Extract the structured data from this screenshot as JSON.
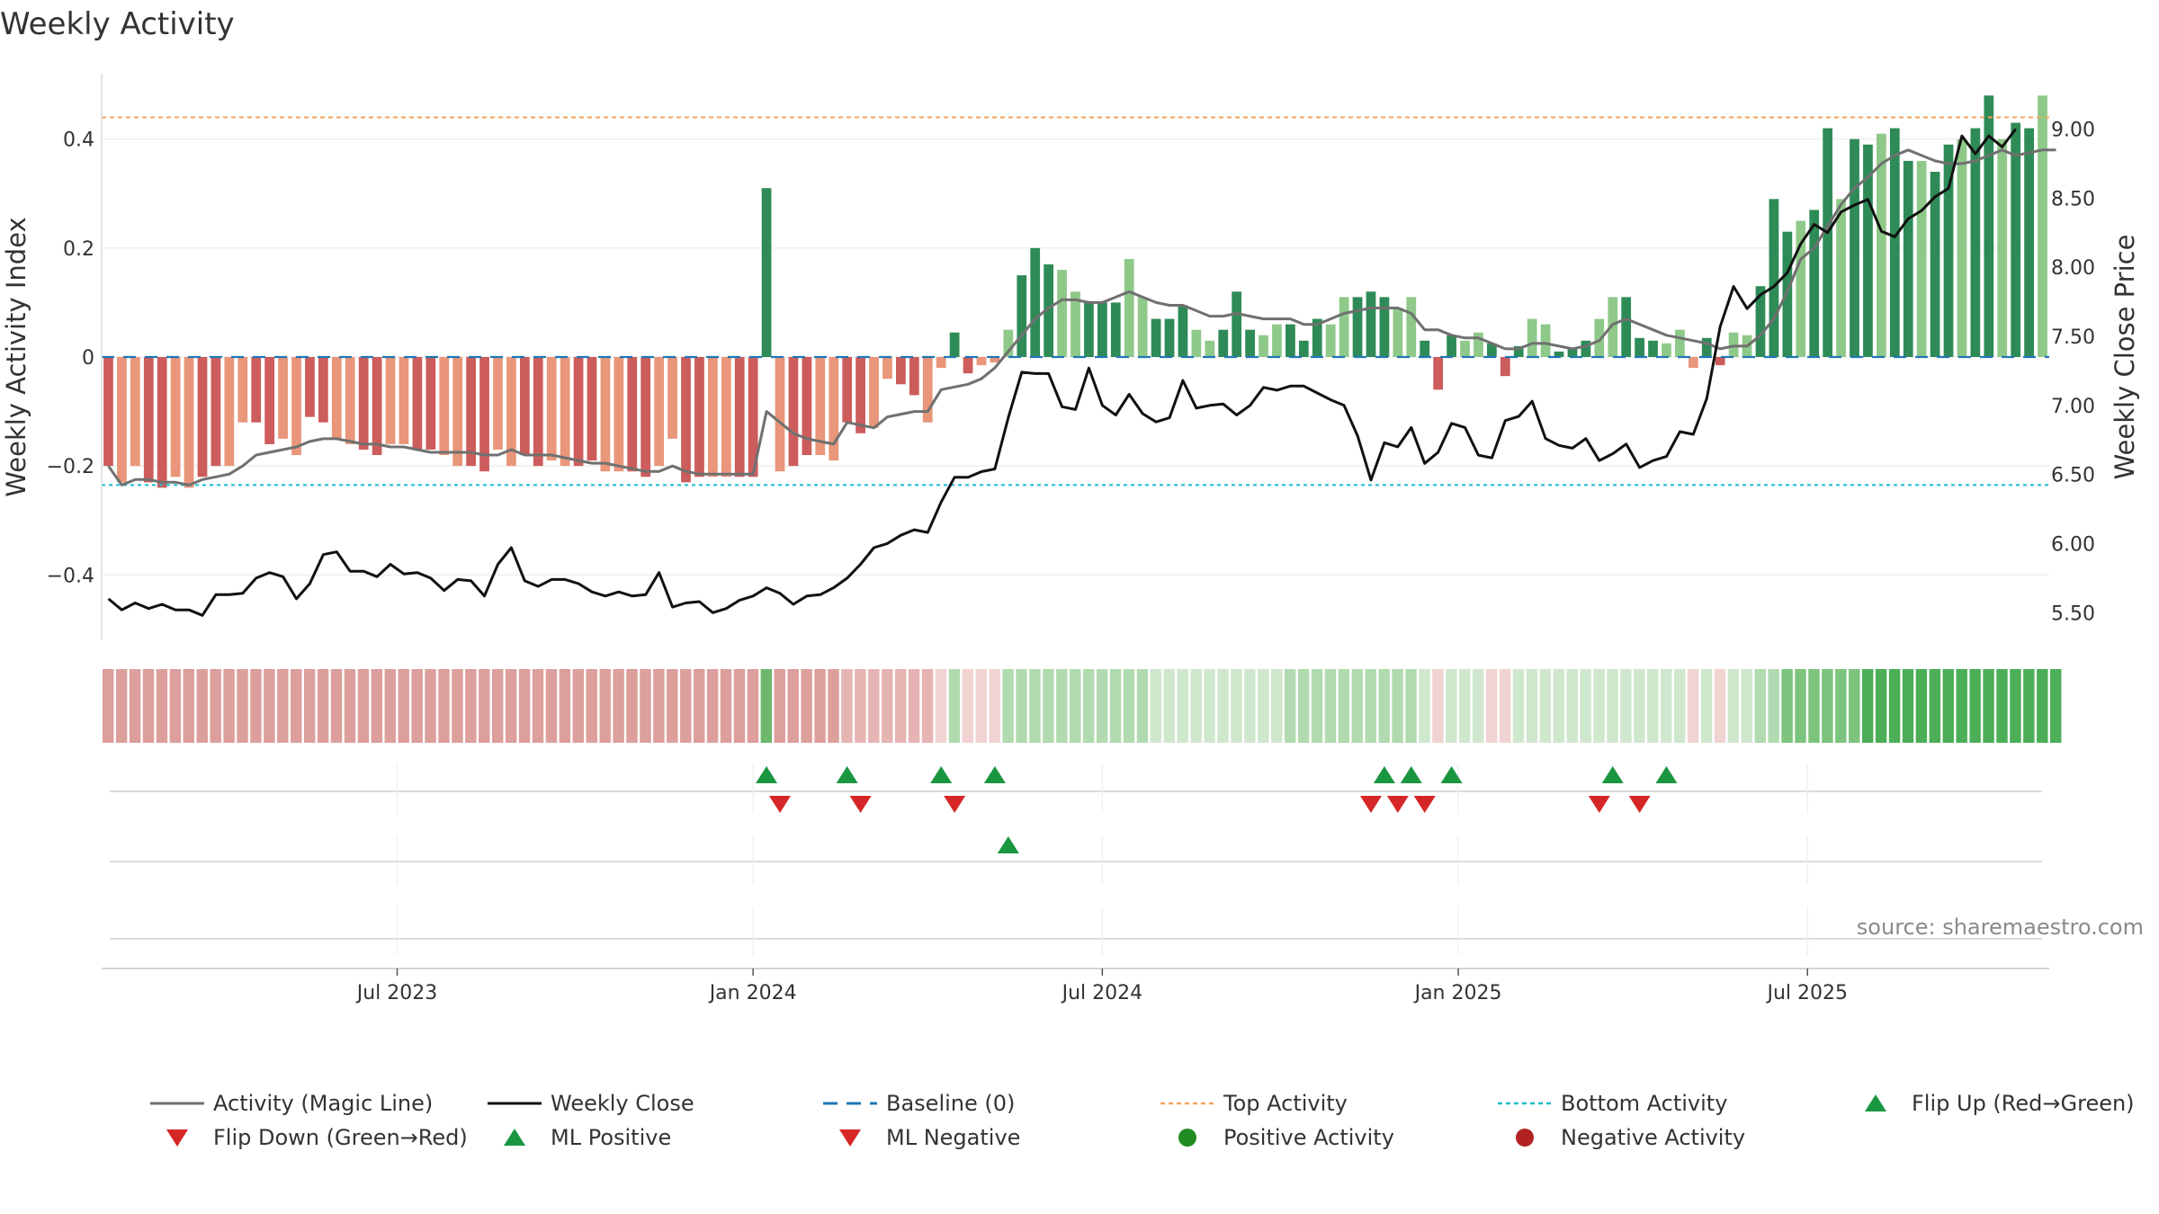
{
  "chart_data": {
    "type": "bar",
    "title": "Weekly Activity",
    "ylabel": "Weekly Activity Index",
    "y2label": "Weekly Close Price",
    "ylim": [
      -0.52,
      0.52
    ],
    "y2lim": [
      5.3,
      9.4
    ],
    "yticks": [
      {
        "value": 0.4,
        "label": "0.4"
      },
      {
        "value": 0.2,
        "label": "0.2"
      },
      {
        "value": 0,
        "label": "0"
      },
      {
        "value": -0.2,
        "label": "−0.2"
      },
      {
        "value": -0.4,
        "label": "−0.4"
      }
    ],
    "y2ticks": [
      {
        "value": 9.0,
        "label": "9.00"
      },
      {
        "value": 8.5,
        "label": "8.50"
      },
      {
        "value": 8.0,
        "label": "8.00"
      },
      {
        "value": 7.5,
        "label": "7.50"
      },
      {
        "value": 7.0,
        "label": "7.00"
      },
      {
        "value": 6.5,
        "label": "6.50"
      },
      {
        "value": 6.0,
        "label": "6.00"
      },
      {
        "value": 5.5,
        "label": "5.50"
      }
    ],
    "xticks": [
      {
        "week": 22,
        "label": "Jul 2023"
      },
      {
        "week": 48.5,
        "label": "Jan 2024"
      },
      {
        "week": 74.5,
        "label": "Jul 2024"
      },
      {
        "week": 101,
        "label": "Jan 2025"
      },
      {
        "week": 127,
        "label": "Jul 2025"
      }
    ],
    "top_activity": 0.44,
    "bottom_activity": -0.235,
    "activity": [
      -0.2,
      -0.23,
      -0.2,
      -0.23,
      -0.24,
      -0.22,
      -0.24,
      -0.22,
      -0.2,
      -0.2,
      -0.12,
      -0.12,
      -0.16,
      -0.15,
      -0.18,
      -0.11,
      -0.12,
      -0.15,
      -0.16,
      -0.17,
      -0.18,
      -0.16,
      -0.16,
      -0.17,
      -0.17,
      -0.18,
      -0.2,
      -0.2,
      -0.21,
      -0.17,
      -0.2,
      -0.18,
      -0.2,
      -0.19,
      -0.2,
      -0.2,
      -0.19,
      -0.21,
      -0.21,
      -0.21,
      -0.22,
      -0.2,
      -0.15,
      -0.23,
      -0.22,
      -0.22,
      -0.22,
      -0.22,
      -0.22,
      0.31,
      -0.21,
      -0.2,
      -0.18,
      -0.18,
      -0.19,
      -0.12,
      -0.14,
      -0.13,
      -0.04,
      -0.05,
      -0.07,
      -0.12,
      -0.02,
      0.045,
      -0.03,
      -0.015,
      -0.01,
      0.05,
      0.15,
      0.2,
      0.17,
      0.16,
      0.12,
      0.1,
      0.1,
      0.1,
      0.18,
      0.11,
      0.07,
      0.07,
      0.095,
      0.05,
      0.03,
      0.05,
      0.12,
      0.05,
      0.04,
      0.06,
      0.06,
      0.03,
      0.07,
      0.06,
      0.11,
      0.11,
      0.12,
      0.11,
      0.09,
      0.11,
      0.03,
      -0.06,
      0.04,
      0.03,
      0.045,
      0.025,
      -0.035,
      0.02,
      0.07,
      0.06,
      0.01,
      0.015,
      0.03,
      0.07,
      0.11,
      0.11,
      0.035,
      0.03,
      0.025,
      0.05,
      -0.02,
      0.035,
      -0.015,
      0.045,
      0.04,
      0.13,
      0.29,
      0.23,
      0.25,
      0.27,
      0.42,
      0.29,
      0.4,
      0.39,
      0.41,
      0.42,
      0.36,
      0.36,
      0.34,
      0.39,
      0.4,
      0.42,
      0.48,
      0.4,
      0.43,
      0.42,
      0.48
    ],
    "magic_line": [
      -0.2,
      -0.235,
      -0.225,
      -0.225,
      -0.23,
      -0.23,
      -0.235,
      -0.225,
      -0.22,
      -0.215,
      -0.2,
      -0.18,
      -0.175,
      -0.17,
      -0.165,
      -0.155,
      -0.15,
      -0.15,
      -0.155,
      -0.16,
      -0.16,
      -0.165,
      -0.165,
      -0.17,
      -0.175,
      -0.175,
      -0.175,
      -0.175,
      -0.18,
      -0.18,
      -0.17,
      -0.18,
      -0.18,
      -0.18,
      -0.185,
      -0.19,
      -0.195,
      -0.195,
      -0.2,
      -0.205,
      -0.21,
      -0.21,
      -0.2,
      -0.21,
      -0.215,
      -0.215,
      -0.215,
      -0.215,
      -0.215,
      -0.1,
      -0.12,
      -0.14,
      -0.15,
      -0.155,
      -0.16,
      -0.12,
      -0.125,
      -0.13,
      -0.11,
      -0.105,
      -0.1,
      -0.1,
      -0.06,
      -0.055,
      -0.05,
      -0.04,
      -0.02,
      0.01,
      0.04,
      0.07,
      0.09,
      0.105,
      0.105,
      0.1,
      0.1,
      0.11,
      0.12,
      0.11,
      0.1,
      0.095,
      0.095,
      0.085,
      0.075,
      0.075,
      0.08,
      0.075,
      0.07,
      0.07,
      0.07,
      0.06,
      0.06,
      0.07,
      0.08,
      0.085,
      0.09,
      0.09,
      0.09,
      0.08,
      0.05,
      0.05,
      0.04,
      0.035,
      0.035,
      0.025,
      0.015,
      0.015,
      0.025,
      0.025,
      0.02,
      0.015,
      0.02,
      0.03,
      0.06,
      0.07,
      0.06,
      0.05,
      0.04,
      0.035,
      0.03,
      0.025,
      0.015,
      0.02,
      0.02,
      0.04,
      0.07,
      0.12,
      0.18,
      0.2,
      0.24,
      0.28,
      0.31,
      0.33,
      0.355,
      0.37,
      0.38,
      0.37,
      0.36,
      0.355,
      0.355,
      0.36,
      0.37,
      0.38,
      0.37,
      0.375,
      0.38,
      0.38
    ],
    "weekly_close": [
      5.6,
      5.52,
      5.57,
      5.53,
      5.56,
      5.52,
      5.52,
      5.48,
      5.63,
      5.63,
      5.64,
      5.75,
      5.79,
      5.76,
      5.6,
      5.71,
      5.92,
      5.94,
      5.8,
      5.8,
      5.76,
      5.85,
      5.78,
      5.79,
      5.75,
      5.66,
      5.74,
      5.73,
      5.62,
      5.85,
      5.97,
      5.73,
      5.69,
      5.74,
      5.74,
      5.71,
      5.65,
      5.62,
      5.65,
      5.62,
      5.63,
      5.79,
      5.54,
      5.57,
      5.58,
      5.5,
      5.53,
      5.59,
      5.62,
      5.68,
      5.64,
      5.56,
      5.62,
      5.63,
      5.68,
      5.75,
      5.85,
      5.97,
      6.0,
      6.06,
      6.1,
      6.08,
      6.3,
      6.48,
      6.48,
      6.52,
      6.54,
      6.91,
      7.24,
      7.23,
      7.23,
      6.99,
      6.97,
      7.27,
      7.0,
      6.93,
      7.08,
      6.94,
      6.88,
      6.91,
      7.18,
      6.98,
      7.0,
      7.01,
      6.93,
      7.0,
      7.13,
      7.11,
      7.14,
      7.14,
      7.09,
      7.04,
      7.0,
      6.78,
      6.46,
      6.73,
      6.7,
      6.84,
      6.58,
      6.66,
      6.87,
      6.84,
      6.64,
      6.62,
      6.89,
      6.92,
      7.03,
      6.76,
      6.71,
      6.69,
      6.76,
      6.6,
      6.65,
      6.72,
      6.55,
      6.6,
      6.63,
      6.81,
      6.79,
      7.05,
      7.57,
      7.86,
      7.7,
      7.8,
      7.86,
      7.96,
      8.17,
      8.31,
      8.25,
      8.4,
      8.45,
      8.49,
      8.26,
      8.22,
      8.35,
      8.41,
      8.51,
      8.57,
      8.95,
      8.82,
      8.95,
      8.87,
      9.0
    ],
    "activity_strip": [
      "r2",
      "r2",
      "r2",
      "r2",
      "r2",
      "r2",
      "r2",
      "r2",
      "r2",
      "r2",
      "r2",
      "r2",
      "r2",
      "r2",
      "r2",
      "r2",
      "r2",
      "r2",
      "r2",
      "r2",
      "r2",
      "r2",
      "r2",
      "r2",
      "r2",
      "r2",
      "r2",
      "r2",
      "r2",
      "r2",
      "r2",
      "r2",
      "r2",
      "r2",
      "r2",
      "r2",
      "r2",
      "r2",
      "r2",
      "r2",
      "r2",
      "r2",
      "r2",
      "r2",
      "r2",
      "r2",
      "r2",
      "r2",
      "r2",
      "G",
      "r2",
      "r2",
      "r2",
      "r2",
      "r2",
      "r1",
      "r1",
      "r1",
      "r1",
      "r1",
      "r1",
      "r1",
      "r0",
      "g1",
      "r0",
      "r0",
      "r0",
      "g1",
      "g1",
      "g1",
      "g1",
      "g1",
      "g1",
      "g1",
      "g1",
      "g1",
      "g1",
      "g1",
      "g0",
      "g0",
      "g0",
      "g0",
      "g0",
      "g0",
      "g0",
      "g0",
      "g0",
      "g0",
      "g1",
      "g1",
      "g1",
      "g1",
      "g1",
      "g1",
      "g1",
      "g1",
      "g1",
      "g1",
      "g0",
      "r0",
      "g0",
      "g0",
      "g0",
      "r0",
      "r0",
      "g0",
      "g0",
      "g0",
      "g0",
      "g0",
      "g0",
      "g0",
      "g0",
      "g0",
      "g0",
      "g0",
      "g0",
      "g0",
      "r0",
      "g0",
      "r0",
      "g0",
      "g0",
      "g1",
      "g1",
      "g2",
      "g2",
      "g2",
      "g2",
      "g2",
      "g2",
      "g3",
      "g3",
      "g3",
      "g3",
      "g3",
      "g3",
      "g3",
      "g3",
      "g3",
      "g3",
      "g3",
      "g3",
      "g3",
      "g3",
      "g3"
    ],
    "flip_up_weeks": [
      49.5,
      55.5,
      62.5,
      66.5,
      95.5,
      97.5,
      100.5,
      112.5,
      116.5
    ],
    "flip_down_weeks": [
      50.5,
      56.5,
      63.5,
      94.5,
      96.5,
      98.5,
      111.5,
      114.5
    ],
    "ml_positive_weeks": [
      67.5
    ],
    "ml_negative_weeks": [],
    "positive_activity_weeks": [],
    "negative_activity_weeks": [],
    "colors": {
      "bar_red_dark": "#cd5c5c",
      "bar_red_light": "#e9967a",
      "bar_green_dark": "#2e8b57",
      "bar_green_light": "#8fc98a",
      "magic_line": "#707070",
      "weekly_close": "#111111",
      "baseline": "#1f77b4",
      "top_activity": "#f4a460",
      "bottom_activity": "#17becf",
      "flip_up": "#1a9641",
      "flip_down": "#d62728",
      "positive_activity": "#228b22",
      "negative_activity": "#b22222"
    },
    "legend": [
      {
        "label": "Activity (Magic Line)",
        "marker": "line-gray"
      },
      {
        "label": "Weekly Close",
        "marker": "line-black"
      },
      {
        "label": "Baseline (0)",
        "marker": "dash-blue"
      },
      {
        "label": "Top Activity",
        "marker": "dot-orange"
      },
      {
        "label": "Bottom Activity",
        "marker": "dot-cyan"
      },
      {
        "label": "Flip Up (Red→Green)",
        "marker": "tri-up-green"
      },
      {
        "label": "Flip Down (Green→Red)",
        "marker": "tri-down-red"
      },
      {
        "label": "ML Positive",
        "marker": "tri-up-green"
      },
      {
        "label": "ML Negative",
        "marker": "tri-down-red"
      },
      {
        "label": "Positive Activity",
        "marker": "circle-green"
      },
      {
        "label": "Negative Activity",
        "marker": "circle-red"
      }
    ],
    "legend_position": "bottom",
    "source": "source: sharemaestro.com"
  }
}
